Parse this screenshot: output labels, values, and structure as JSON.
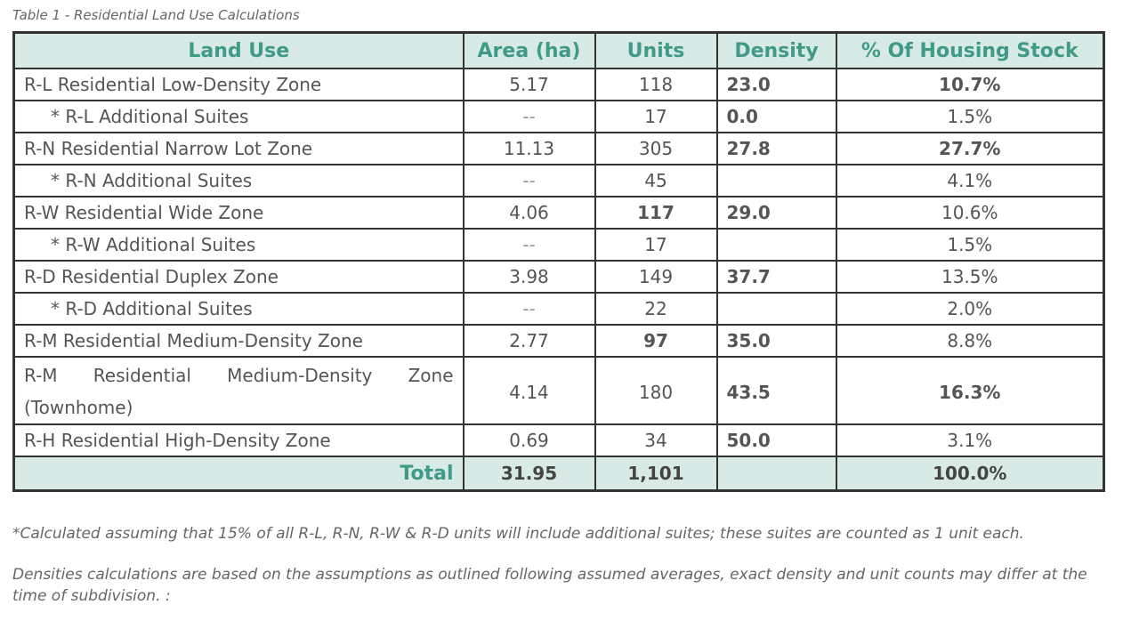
{
  "caption": "Table 1 - Residential Land Use Calculations",
  "headers": {
    "land_use": "Land Use",
    "area": "Area (ha)",
    "units": "Units",
    "density": "Density",
    "pct": "% Of Housing Stock"
  },
  "rows": [
    {
      "land_use": "R-L Residential Low-Density Zone",
      "area": "5.17",
      "units": "118",
      "density": "23.0",
      "pct": "10.7%"
    },
    {
      "land_use": "* R-L Additional Suites",
      "area": "--",
      "units": "17",
      "density": "0.0",
      "pct": "1.5%"
    },
    {
      "land_use": "R-N Residential Narrow Lot Zone",
      "area": "11.13",
      "units": "305",
      "density": "27.8",
      "pct": "27.7%"
    },
    {
      "land_use": "* R-N Additional Suites",
      "area": "--",
      "units": "45",
      "density": "",
      "pct": "4.1%"
    },
    {
      "land_use": "R-W Residential Wide Zone",
      "area": "4.06",
      "units": "117",
      "density": "29.0",
      "pct": "10.6%"
    },
    {
      "land_use": "* R-W Additional Suites",
      "area": "--",
      "units": "17",
      "density": "",
      "pct": "1.5%"
    },
    {
      "land_use": "R-D Residential Duplex Zone",
      "area": "3.98",
      "units": "149",
      "density": "37.7",
      "pct": "13.5%"
    },
    {
      "land_use": "* R-D Additional Suites",
      "area": "--",
      "units": "22",
      "density": "",
      "pct": "2.0%"
    },
    {
      "land_use": "R-M Residential Medium-Density Zone",
      "area": "2.77",
      "units": "97",
      "density": "35.0",
      "pct": "8.8%"
    },
    {
      "land_use": "R-M Residential Medium-Density Zone (Townhome)",
      "area": "4.14",
      "units": "180",
      "density": "43.5",
      "pct": "16.3%"
    },
    {
      "land_use": "R-H Residential High-Density Zone",
      "area": "0.69",
      "units": "34",
      "density": "50.0",
      "pct": "3.1%"
    }
  ],
  "total": {
    "label": "Total",
    "area": "31.95",
    "units": "1,101",
    "density": "",
    "pct": "100.0%"
  },
  "notes": {
    "suites": "*Calculated assuming that 15% of all R-L, R-N, R-W & R-D units will include additional suites; these suites are counted as 1 unit each.",
    "densities": "Densities calculations are based on the assumptions as outlined following assumed averages, exact density and unit counts may differ at the time of subdivision. :"
  }
}
